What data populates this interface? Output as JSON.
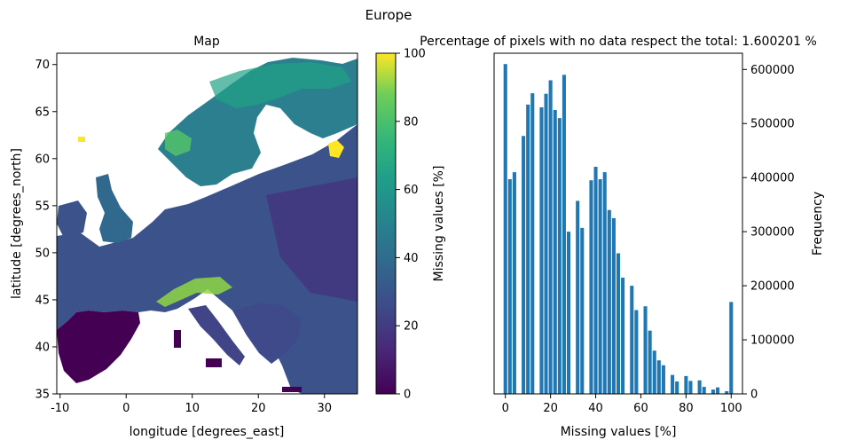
{
  "figure": {
    "suptitle": "Europe"
  },
  "chart_data": [
    {
      "type": "heatmap",
      "title": "Map",
      "xlabel": "longitude [degrees_east]",
      "ylabel": "latitude [degrees_north]",
      "xlim": [
        -10.5,
        35.0
      ],
      "ylim": [
        35.0,
        71.2
      ],
      "xticks": [
        -10,
        0,
        10,
        20,
        30
      ],
      "yticks": [
        35,
        40,
        45,
        50,
        55,
        60,
        65,
        70
      ],
      "colormap": "viridis",
      "colorbar": {
        "label": "Missing values [%]",
        "range": [
          0,
          100
        ],
        "ticks": [
          0,
          20,
          40,
          60,
          80,
          100
        ]
      },
      "grid": false
    },
    {
      "type": "bar",
      "title": "Percentage of pixels with no data respect the total: 1.600201 %",
      "xlabel": "Missing values [%]",
      "ylabel": "Frequency",
      "yaxis_position": "right",
      "xlim": [
        -5,
        105
      ],
      "ylim": [
        0,
        630000
      ],
      "xticks": [
        0,
        20,
        40,
        60,
        80,
        100
      ],
      "yticks": [
        0,
        100000,
        200000,
        300000,
        400000,
        500000,
        600000
      ],
      "bar_color": "#1f77b4",
      "x": [
        0,
        2,
        4,
        8,
        10,
        12,
        16,
        18,
        20,
        22,
        24,
        26,
        28,
        32,
        34,
        38,
        40,
        42,
        44,
        46,
        48,
        50,
        52,
        56,
        58,
        62,
        64,
        66,
        68,
        70,
        74,
        76,
        80,
        82,
        86,
        88,
        92,
        94,
        98,
        100
      ],
      "values": [
        610000,
        397000,
        410000,
        477000,
        535000,
        556000,
        530000,
        555000,
        580000,
        525000,
        510000,
        590000,
        300000,
        357000,
        307000,
        395000,
        420000,
        397000,
        410000,
        340000,
        325000,
        260000,
        215000,
        200000,
        155000,
        162000,
        117000,
        80000,
        62000,
        53000,
        35000,
        23000,
        33000,
        24000,
        25000,
        13000,
        8000,
        12000,
        5000,
        170000
      ],
      "grid": false
    }
  ]
}
